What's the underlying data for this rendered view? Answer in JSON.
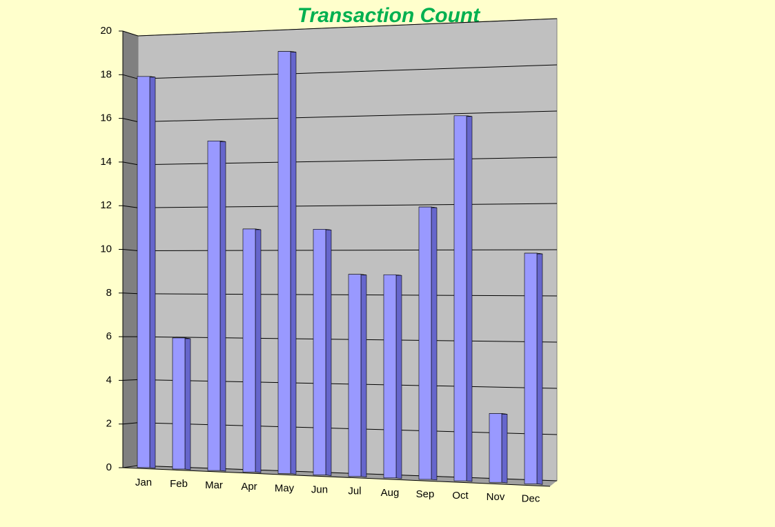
{
  "chart_data": {
    "type": "bar",
    "title": "Transaction  Count",
    "categories": [
      "Jan",
      "Feb",
      "Mar",
      "Apr",
      "May",
      "Jun",
      "Jul",
      "Aug",
      "Sep",
      "Oct",
      "Nov",
      "Dec"
    ],
    "values": [
      18,
      6,
      15,
      11,
      19,
      11,
      9,
      9,
      12,
      16,
      3,
      10
    ],
    "color": "#9999ff",
    "ylim": [
      0,
      20
    ],
    "yticks": [
      0,
      2,
      4,
      6,
      8,
      10,
      12,
      14,
      16,
      18,
      20
    ],
    "grid": true
  }
}
